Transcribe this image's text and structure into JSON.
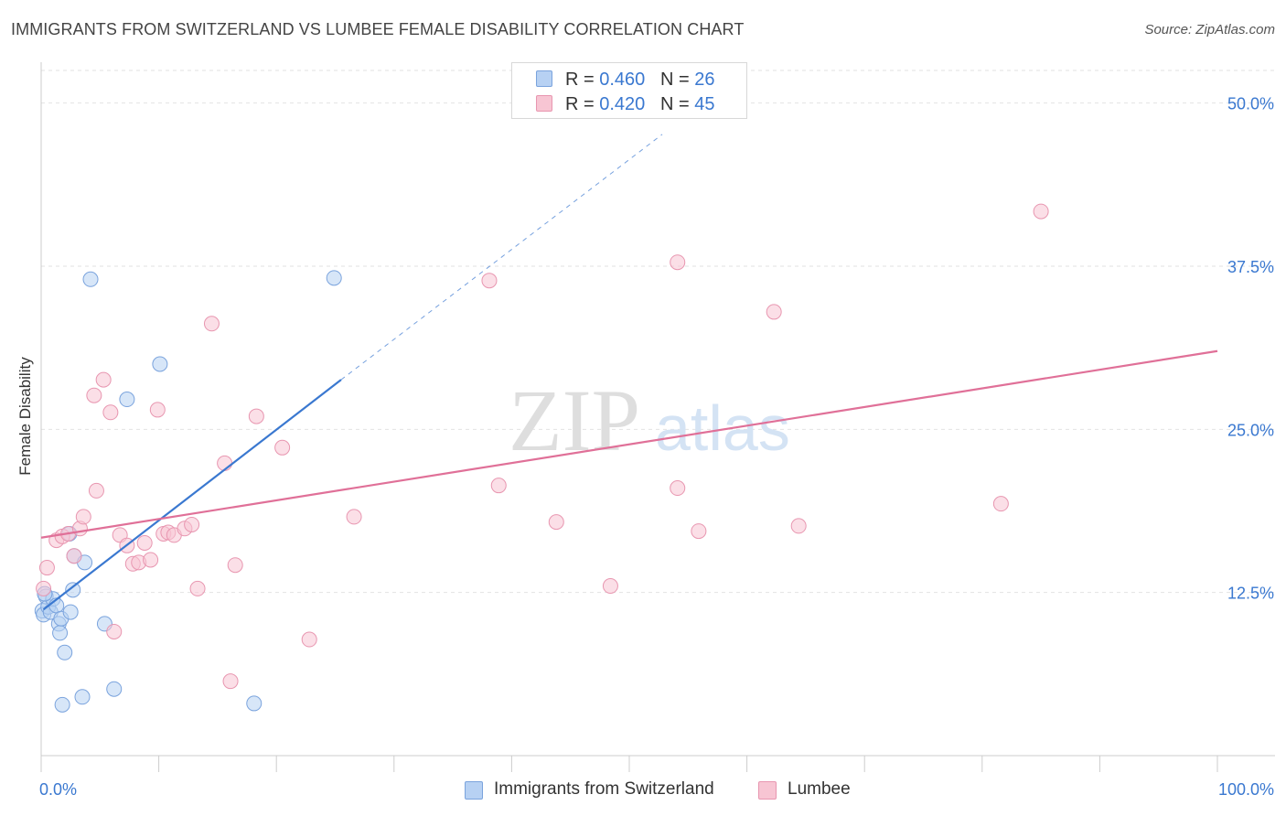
{
  "header": {
    "title": "IMMIGRANTS FROM SWITZERLAND VS LUMBEE FEMALE DISABILITY CORRELATION CHART",
    "source": "Source: ZipAtlas.com"
  },
  "watermark": {
    "zip": "ZIP",
    "atlas": "atlas"
  },
  "legend": {
    "rows": [
      {
        "r_label": "R = ",
        "r_value": "0.460",
        "n_label": "N = ",
        "n_value": "26",
        "fill": "#b7d1f3",
        "stroke": "#7aa3dd"
      },
      {
        "r_label": "R = ",
        "r_value": "0.420",
        "n_label": "N = ",
        "n_value": "45",
        "fill": "#f7c5d3",
        "stroke": "#e896b0"
      }
    ]
  },
  "bottom_legend": {
    "items": [
      {
        "label": "Immigrants from Switzerland",
        "fill": "#b7d1f3",
        "stroke": "#7aa3dd"
      },
      {
        "label": "Lumbee",
        "fill": "#f7c5d3",
        "stroke": "#e896b0"
      }
    ]
  },
  "chart_data": {
    "type": "scatter",
    "title": "IMMIGRANTS FROM SWITZERLAND VS LUMBEE FEMALE DISABILITY CORRELATION CHART",
    "xlabel": "",
    "ylabel": "Female Disability",
    "xlim": [
      0,
      100
    ],
    "ylim": [
      0,
      52.5
    ],
    "x_tick_labels": [
      "0.0%",
      "100.0%"
    ],
    "y_ticks": [
      12.5,
      25.0,
      37.5,
      50.0
    ],
    "y_tick_labels": [
      "12.5%",
      "25.0%",
      "37.5%",
      "50.0%"
    ],
    "grid": "horizontal dashed",
    "colors": {
      "blue": "#3a78d0",
      "pink": "#e07098",
      "tick_label": "#3a78d0"
    },
    "series": [
      {
        "name": "Immigrants from Switzerland",
        "color": "#7aa3dd",
        "fill": "#b7d1f3",
        "trend": {
          "x": [
            0.2,
            25.5
          ],
          "y": [
            11.2,
            28.8
          ],
          "dashed_to": [
            52.8,
            47.6
          ]
        },
        "points": [
          {
            "x": 0.1,
            "y": 11.1
          },
          {
            "x": 0.2,
            "y": 10.8
          },
          {
            "x": 0.4,
            "y": 12.2
          },
          {
            "x": 0.6,
            "y": 11.4
          },
          {
            "x": 0.8,
            "y": 11.0
          },
          {
            "x": 1.0,
            "y": 12.0
          },
          {
            "x": 1.3,
            "y": 11.5
          },
          {
            "x": 1.5,
            "y": 10.1
          },
          {
            "x": 1.6,
            "y": 9.4
          },
          {
            "x": 1.7,
            "y": 10.5
          },
          {
            "x": 1.8,
            "y": 3.9
          },
          {
            "x": 2.0,
            "y": 7.9
          },
          {
            "x": 2.4,
            "y": 17.0
          },
          {
            "x": 2.5,
            "y": 11.0
          },
          {
            "x": 2.7,
            "y": 12.7
          },
          {
            "x": 2.8,
            "y": 15.3
          },
          {
            "x": 3.5,
            "y": 4.5
          },
          {
            "x": 3.7,
            "y": 14.8
          },
          {
            "x": 4.2,
            "y": 36.5
          },
          {
            "x": 5.4,
            "y": 10.1
          },
          {
            "x": 6.2,
            "y": 5.1
          },
          {
            "x": 7.3,
            "y": 27.3
          },
          {
            "x": 10.1,
            "y": 30.0
          },
          {
            "x": 18.1,
            "y": 4.0
          },
          {
            "x": 24.9,
            "y": 36.6
          },
          {
            "x": 0.3,
            "y": 12.4
          }
        ]
      },
      {
        "name": "Lumbee",
        "color": "#e896b0",
        "fill": "#f7c5d3",
        "trend": {
          "x": [
            0.0,
            100.0
          ],
          "y": [
            16.7,
            31.0
          ]
        },
        "points": [
          {
            "x": 0.2,
            "y": 12.8
          },
          {
            "x": 0.5,
            "y": 14.4
          },
          {
            "x": 1.3,
            "y": 16.5
          },
          {
            "x": 1.8,
            "y": 16.8
          },
          {
            "x": 2.3,
            "y": 17.0
          },
          {
            "x": 2.8,
            "y": 15.3
          },
          {
            "x": 3.3,
            "y": 17.4
          },
          {
            "x": 3.6,
            "y": 18.3
          },
          {
            "x": 4.5,
            "y": 27.6
          },
          {
            "x": 4.7,
            "y": 20.3
          },
          {
            "x": 5.3,
            "y": 28.8
          },
          {
            "x": 5.9,
            "y": 26.3
          },
          {
            "x": 6.2,
            "y": 9.5
          },
          {
            "x": 6.7,
            "y": 16.9
          },
          {
            "x": 7.3,
            "y": 16.1
          },
          {
            "x": 7.8,
            "y": 14.7
          },
          {
            "x": 8.3,
            "y": 14.8
          },
          {
            "x": 8.8,
            "y": 16.3
          },
          {
            "x": 9.3,
            "y": 15.0
          },
          {
            "x": 9.9,
            "y": 26.5
          },
          {
            "x": 10.4,
            "y": 17.0
          },
          {
            "x": 10.8,
            "y": 17.1
          },
          {
            "x": 11.3,
            "y": 16.9
          },
          {
            "x": 12.2,
            "y": 17.4
          },
          {
            "x": 12.8,
            "y": 17.7
          },
          {
            "x": 13.3,
            "y": 12.8
          },
          {
            "x": 14.5,
            "y": 33.1
          },
          {
            "x": 15.6,
            "y": 22.4
          },
          {
            "x": 16.1,
            "y": 5.7
          },
          {
            "x": 16.5,
            "y": 14.6
          },
          {
            "x": 18.3,
            "y": 26.0
          },
          {
            "x": 20.5,
            "y": 23.6
          },
          {
            "x": 22.8,
            "y": 8.9
          },
          {
            "x": 26.6,
            "y": 18.3
          },
          {
            "x": 38.1,
            "y": 36.4
          },
          {
            "x": 38.9,
            "y": 20.7
          },
          {
            "x": 43.8,
            "y": 17.9
          },
          {
            "x": 48.4,
            "y": 13.0
          },
          {
            "x": 54.1,
            "y": 37.8
          },
          {
            "x": 54.1,
            "y": 20.5
          },
          {
            "x": 55.9,
            "y": 17.2
          },
          {
            "x": 62.3,
            "y": 34.0
          },
          {
            "x": 64.4,
            "y": 17.6
          },
          {
            "x": 81.6,
            "y": 19.3
          },
          {
            "x": 85.0,
            "y": 41.7
          }
        ]
      }
    ]
  }
}
